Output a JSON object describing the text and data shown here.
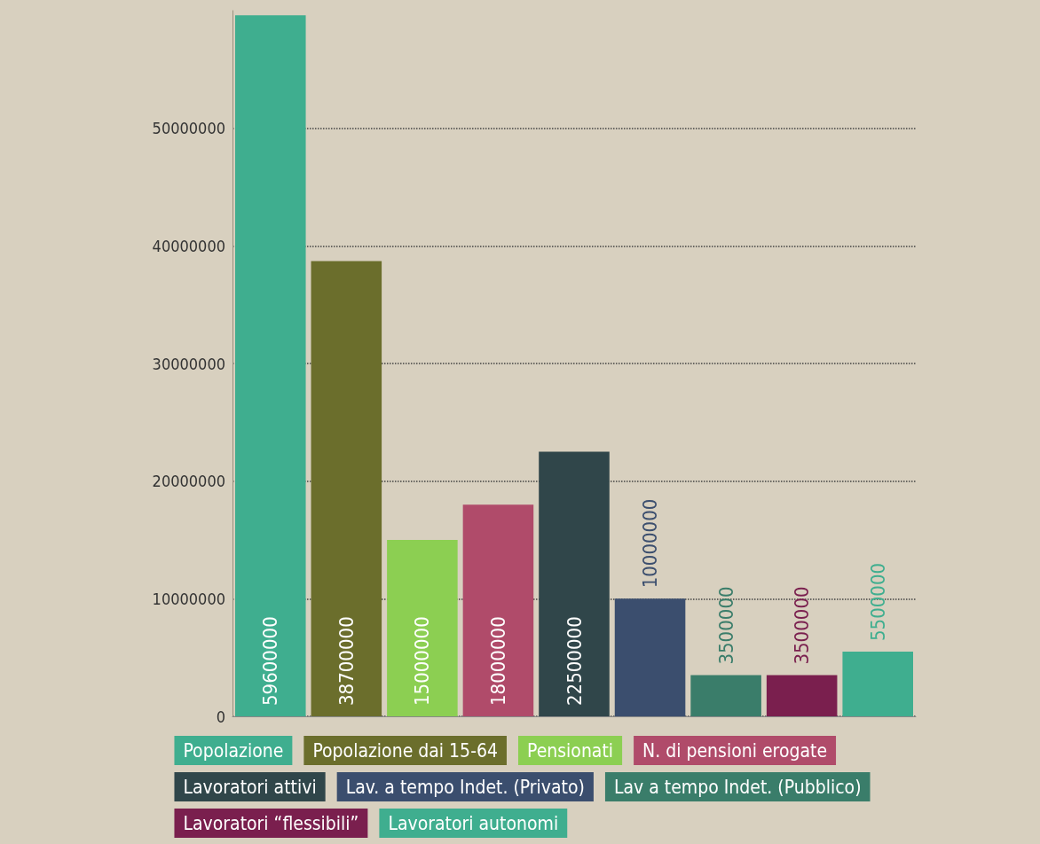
{
  "chart_data": {
    "type": "bar",
    "stacked": true,
    "categories": [
      null,
      null,
      null,
      null,
      null,
      null,
      null,
      null,
      null
    ],
    "series": [
      {
        "name": "Popolazione",
        "color": "#3fae8f",
        "values": [
          59600000,
          null,
          null,
          null,
          null,
          null,
          null,
          null,
          null
        ]
      },
      {
        "name": "Popolazione dai 15-64",
        "color": "#6b6e2c",
        "values": [
          null,
          38700000,
          null,
          null,
          null,
          null,
          null,
          null,
          null
        ]
      },
      {
        "name": "Pensionati",
        "color": "#8ccf52",
        "values": [
          null,
          null,
          15000000,
          null,
          null,
          null,
          null,
          null,
          null
        ]
      },
      {
        "name": "N. di pensioni erogate",
        "color": "#b04b6a",
        "values": [
          null,
          null,
          null,
          18000000,
          null,
          null,
          null,
          null,
          null
        ]
      },
      {
        "name": "Lavoratori attivi",
        "color": "#30464a",
        "values": [
          null,
          null,
          null,
          null,
          22500000,
          null,
          null,
          null,
          null
        ]
      },
      {
        "name": "Lav. a tempo Indet. (Privato)",
        "color": "#3b4e6e",
        "values": [
          null,
          null,
          null,
          null,
          null,
          10000000,
          null,
          null,
          null
        ]
      },
      {
        "name": "Lav a tempo Indet. (Pubblico)",
        "color": "#3a7d6a",
        "values": [
          null,
          null,
          null,
          null,
          null,
          null,
          3500000,
          null,
          null
        ]
      },
      {
        "name": "Lavoratori “flessibili”",
        "color": "#7a1f4e",
        "values": [
          null,
          null,
          null,
          null,
          null,
          null,
          null,
          3500000,
          null
        ]
      },
      {
        "name": "Lavoratori autonomi",
        "color": "#3fae8f",
        "values": [
          null,
          null,
          null,
          null,
          null,
          null,
          null,
          null,
          5500000
        ]
      }
    ],
    "ylim": [
      0,
      60000000
    ],
    "yticks": [
      0,
      10000000,
      20000000,
      30000000,
      40000000,
      50000000
    ],
    "grid": "y",
    "legend": "bottom",
    "data_labels": true
  }
}
